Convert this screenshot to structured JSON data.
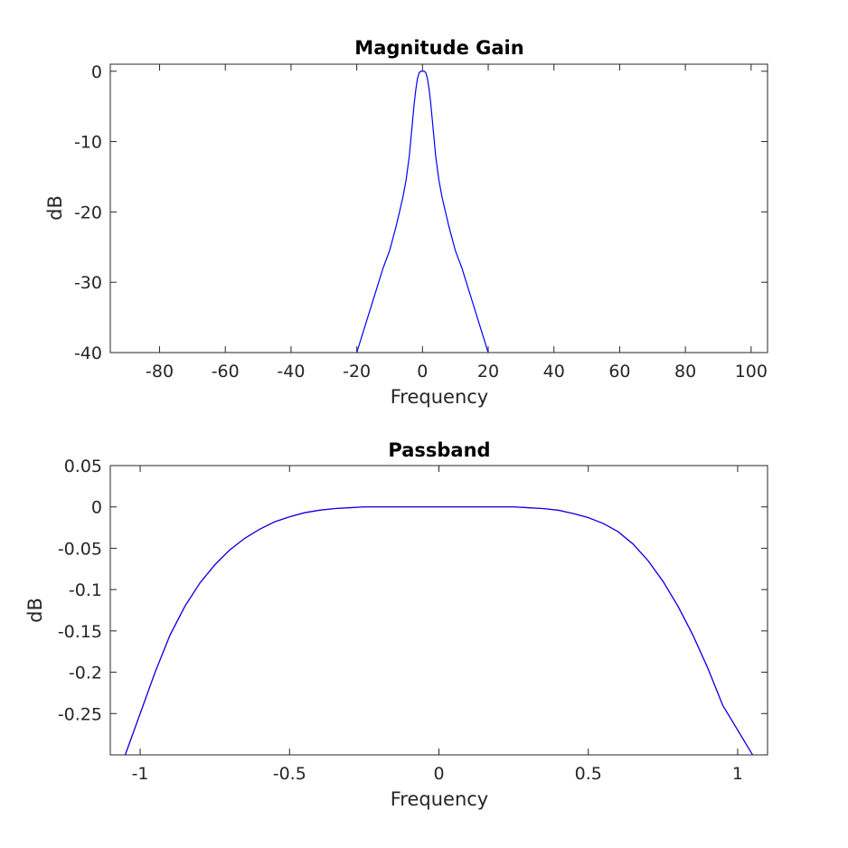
{
  "colors": {
    "main_series": "#0000ff",
    "overlay_series": "#ff0000",
    "axes": "#262626",
    "title": "#000000"
  },
  "chart_data": [
    {
      "type": "line",
      "title": "Magnitude Gain",
      "xlabel": "Frequency",
      "ylabel": "dB",
      "xlim": [
        -95,
        105
      ],
      "ylim": [
        -40,
        1
      ],
      "xticks": [
        -80,
        -60,
        -40,
        -20,
        0,
        20,
        40,
        60,
        80,
        100
      ],
      "xtick_labels": [
        "-80",
        "-60",
        "-40",
        "-20",
        "0",
        "20",
        "40",
        "60",
        "80",
        "100"
      ],
      "yticks": [
        0,
        -10,
        -20,
        -30,
        -40
      ],
      "ytick_labels": [
        "0",
        "-10",
        "-20",
        "-30",
        "-40"
      ],
      "grid": false,
      "series": [
        {
          "color": "#0000ff",
          "x": [
            -20.0,
            -18.0,
            -16.0,
            -14.0,
            -12.0,
            -10.0,
            -8.0,
            -6.0,
            -5.0,
            -4.0,
            -3.0,
            -2.5,
            -2.0,
            -1.5,
            -1.0,
            -0.5,
            0.0,
            0.5,
            1.0,
            1.5,
            2.0,
            2.5,
            3.0,
            4.0,
            5.0,
            6.0,
            8.0,
            10.0,
            12.0,
            14.0,
            16.0,
            18.0,
            20.0
          ],
          "y": [
            -40.0,
            -37.0,
            -34.0,
            -31.0,
            -28.0,
            -25.5,
            -22.0,
            -18.0,
            -15.5,
            -12.0,
            -7.0,
            -4.5,
            -2.5,
            -1.0,
            -0.2,
            0.0,
            0.0,
            0.0,
            -0.2,
            -1.0,
            -2.5,
            -4.5,
            -7.0,
            -12.0,
            -15.5,
            -18.0,
            -22.0,
            -25.5,
            -28.0,
            -31.0,
            -34.0,
            -37.0,
            -40.0
          ]
        }
      ]
    },
    {
      "type": "line",
      "title": "Passband",
      "xlabel": "Frequency",
      "ylabel": "dB",
      "xlim": [
        -1.1,
        1.1
      ],
      "ylim": [
        -0.3,
        0.05
      ],
      "xticks": [
        -1,
        -0.5,
        0,
        0.5,
        1
      ],
      "xtick_labels": [
        "-1",
        "-0.5",
        "0",
        "0.5",
        "1"
      ],
      "yticks": [
        0.05,
        0,
        -0.05,
        -0.1,
        -0.15,
        -0.2,
        -0.25
      ],
      "ytick_labels": [
        "0.05",
        "0",
        "-0.05",
        "-0.1",
        "-0.15",
        "-0.2",
        "-0.25"
      ],
      "grid": false,
      "series": [
        {
          "color": "#ff0000",
          "x": [
            -1.05,
            -1.0,
            -0.95,
            -0.9,
            -0.85,
            -0.8,
            -0.75,
            -0.7,
            -0.65,
            -0.6,
            -0.55,
            -0.5,
            -0.45,
            -0.4,
            -0.35,
            -0.3,
            -0.25,
            -0.2,
            -0.15,
            -0.1,
            -0.05,
            0.0,
            0.05,
            0.1,
            0.15,
            0.2,
            0.25,
            0.3,
            0.35,
            0.4,
            0.45,
            0.5,
            0.55,
            0.6,
            0.65,
            0.7,
            0.75,
            0.8,
            0.85,
            0.9,
            0.95,
            1.0,
            1.05
          ],
          "y": [
            -0.3,
            -0.25,
            -0.2,
            -0.155,
            -0.12,
            -0.092,
            -0.07,
            -0.052,
            -0.038,
            -0.027,
            -0.018,
            -0.012,
            -0.007,
            -0.004,
            -0.002,
            -0.001,
            0.0,
            0.0,
            0.0,
            0.0,
            0.0,
            0.0,
            0.0,
            0.0,
            0.0,
            0.0,
            0.0,
            -0.001,
            -0.002,
            -0.004,
            -0.008,
            -0.013,
            -0.02,
            -0.03,
            -0.045,
            -0.065,
            -0.09,
            -0.12,
            -0.155,
            -0.195,
            -0.24,
            -0.27,
            -0.3
          ]
        },
        {
          "color": "#0000ff",
          "x": [
            -1.05,
            -1.0,
            -0.95,
            -0.9,
            -0.85,
            -0.8,
            -0.75,
            -0.7,
            -0.65,
            -0.6,
            -0.55,
            -0.5,
            -0.45,
            -0.4,
            -0.35,
            -0.3,
            -0.25,
            -0.2,
            -0.15,
            -0.1,
            -0.05,
            0.0,
            0.05,
            0.1,
            0.15,
            0.2,
            0.25,
            0.3,
            0.35,
            0.4,
            0.45,
            0.5,
            0.55,
            0.6,
            0.65,
            0.7,
            0.75,
            0.8,
            0.85,
            0.9,
            0.95,
            1.0,
            1.05
          ],
          "y": [
            -0.3,
            -0.25,
            -0.2,
            -0.155,
            -0.12,
            -0.092,
            -0.07,
            -0.052,
            -0.038,
            -0.027,
            -0.018,
            -0.012,
            -0.007,
            -0.004,
            -0.002,
            -0.001,
            0.0,
            0.0,
            0.0,
            0.0,
            0.0,
            0.0,
            0.0,
            0.0,
            0.0,
            0.0,
            0.0,
            -0.001,
            -0.002,
            -0.004,
            -0.008,
            -0.013,
            -0.02,
            -0.03,
            -0.045,
            -0.065,
            -0.09,
            -0.12,
            -0.155,
            -0.195,
            -0.24,
            -0.27,
            -0.3
          ]
        }
      ]
    }
  ]
}
